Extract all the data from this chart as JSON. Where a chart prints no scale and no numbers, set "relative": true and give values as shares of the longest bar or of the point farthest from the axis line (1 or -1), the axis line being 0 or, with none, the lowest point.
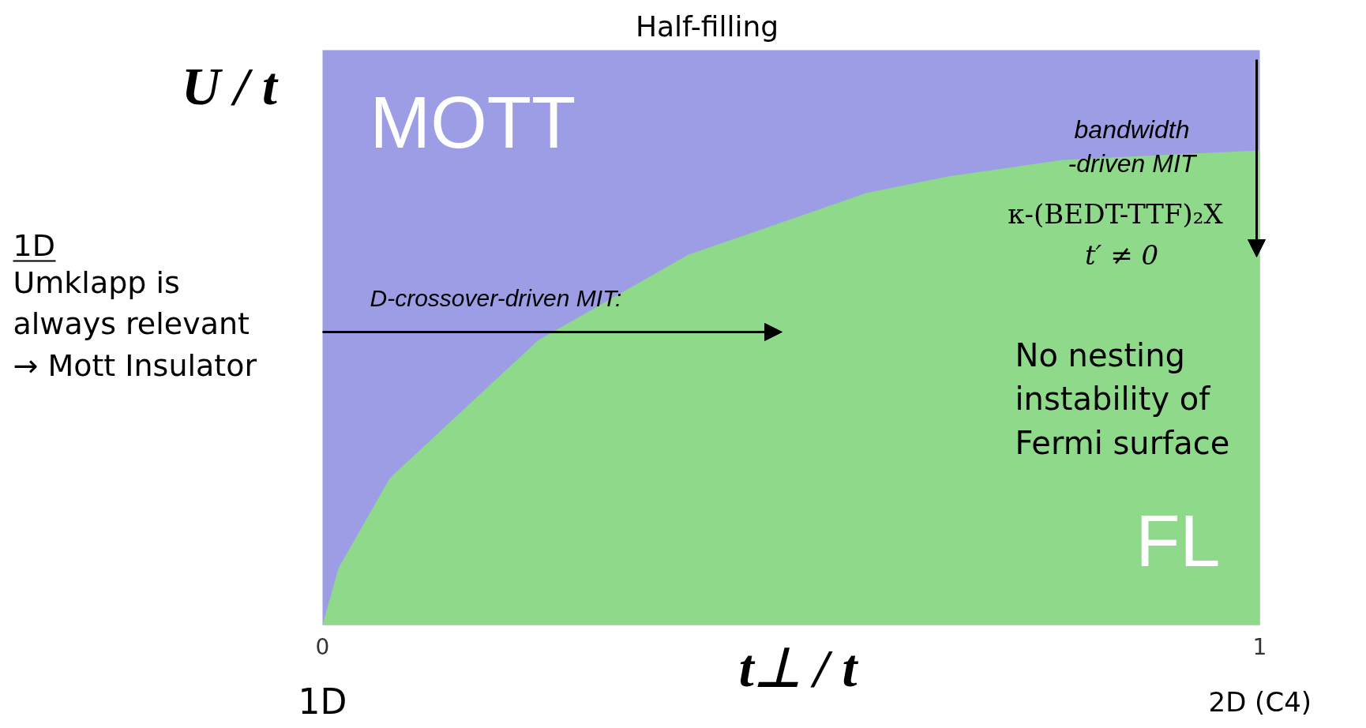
{
  "chart_data": {
    "type": "area",
    "relative": true,
    "title": "Half-filling",
    "xlabel": "t⊥ / t",
    "ylabel": "U / t",
    "x": [
      0,
      0.017,
      0.072,
      0.23,
      0.39,
      0.58,
      0.667,
      0.79,
      1
    ],
    "series": [
      {
        "color": "#8fd98a",
        "values": [
          0,
          0.12,
          0.31,
          0.6,
          0.78,
          0.91,
          0.945,
          0.98,
          1
        ]
      }
    ],
    "bands": [
      {
        "axis": "x",
        "from": 0,
        "to": 1,
        "color": "#9d9de6"
      }
    ],
    "xlim": [
      0,
      1
    ],
    "xticks": [
      0,
      1
    ],
    "grid": false,
    "annotations": [
      "MOTT",
      "FL",
      "bandwidth\n-driven MIT",
      "κ-(BEDT-TTF)₂X",
      "t′ ≠ 0",
      "D-crossover-driven MIT:",
      "No nesting\ninstability of\nFermi surface",
      "1D",
      "Umklapp is\nalways relevant\n→ Mott Insulator",
      "1D",
      "2D  (C4)"
    ]
  }
}
